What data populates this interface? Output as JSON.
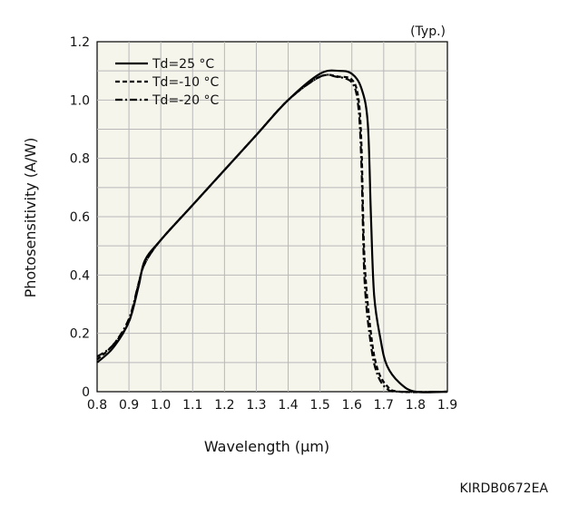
{
  "chart_data": {
    "type": "line",
    "title": "",
    "xlabel": "Wavelength (μm)",
    "ylabel": "Photosensitivity (A/W)",
    "xlim": [
      0.8,
      1.9
    ],
    "ylim": [
      0,
      1.2
    ],
    "xticks": [
      "0.8",
      "0.9",
      "1.0",
      "1.1",
      "1.2",
      "1.3",
      "1.4",
      "1.5",
      "1.6",
      "1.7",
      "1.8",
      "1.9"
    ],
    "yticks": [
      "0",
      "0.2",
      "0.4",
      "0.6",
      "0.8",
      "1.0",
      "1.2"
    ],
    "grid": true,
    "legend_position": "top-left",
    "note": "(Typ.)",
    "series": [
      {
        "name": "Td=25 °C",
        "style": "solid",
        "points": [
          [
            0.8,
            0.1
          ],
          [
            0.85,
            0.15
          ],
          [
            0.9,
            0.24
          ],
          [
            0.93,
            0.36
          ],
          [
            0.95,
            0.45
          ],
          [
            1.0,
            0.52
          ],
          [
            1.1,
            0.64
          ],
          [
            1.2,
            0.76
          ],
          [
            1.3,
            0.88
          ],
          [
            1.4,
            1.0
          ],
          [
            1.5,
            1.09
          ],
          [
            1.56,
            1.1
          ],
          [
            1.6,
            1.09
          ],
          [
            1.63,
            1.04
          ],
          [
            1.65,
            0.92
          ],
          [
            1.66,
            0.6
          ],
          [
            1.67,
            0.33
          ],
          [
            1.69,
            0.18
          ],
          [
            1.71,
            0.09
          ],
          [
            1.75,
            0.03
          ],
          [
            1.8,
            0.0
          ],
          [
            1.9,
            0.0
          ]
        ]
      },
      {
        "name": "Td=-10 °C",
        "style": "dashed",
        "points": [
          [
            0.8,
            0.11
          ],
          [
            0.85,
            0.16
          ],
          [
            0.9,
            0.24
          ],
          [
            0.93,
            0.37
          ],
          [
            0.95,
            0.44
          ],
          [
            1.0,
            0.52
          ],
          [
            1.1,
            0.64
          ],
          [
            1.2,
            0.76
          ],
          [
            1.3,
            0.88
          ],
          [
            1.4,
            1.0
          ],
          [
            1.5,
            1.08
          ],
          [
            1.56,
            1.08
          ],
          [
            1.6,
            1.07
          ],
          [
            1.62,
            1.01
          ],
          [
            1.63,
            0.85
          ],
          [
            1.64,
            0.45
          ],
          [
            1.66,
            0.2
          ],
          [
            1.68,
            0.08
          ],
          [
            1.71,
            0.02
          ],
          [
            1.75,
            0.0
          ],
          [
            1.9,
            0.0
          ]
        ]
      },
      {
        "name": "Td=-20 °C",
        "style": "dashdot",
        "points": [
          [
            0.8,
            0.12
          ],
          [
            0.85,
            0.16
          ],
          [
            0.9,
            0.25
          ],
          [
            0.93,
            0.37
          ],
          [
            0.95,
            0.44
          ],
          [
            1.0,
            0.52
          ],
          [
            1.1,
            0.64
          ],
          [
            1.2,
            0.76
          ],
          [
            1.3,
            0.88
          ],
          [
            1.4,
            1.0
          ],
          [
            1.5,
            1.08
          ],
          [
            1.55,
            1.08
          ],
          [
            1.6,
            1.06
          ],
          [
            1.62,
            0.98
          ],
          [
            1.63,
            0.78
          ],
          [
            1.64,
            0.38
          ],
          [
            1.66,
            0.16
          ],
          [
            1.68,
            0.06
          ],
          [
            1.71,
            0.01
          ],
          [
            1.75,
            0.0
          ],
          [
            1.9,
            0.0
          ]
        ]
      }
    ],
    "code": "KIRDB0672EA"
  },
  "colors": {
    "plot_background": "#f6f5ec",
    "grid": "#b8b8b8",
    "line": "#000000",
    "text": "#111111"
  }
}
